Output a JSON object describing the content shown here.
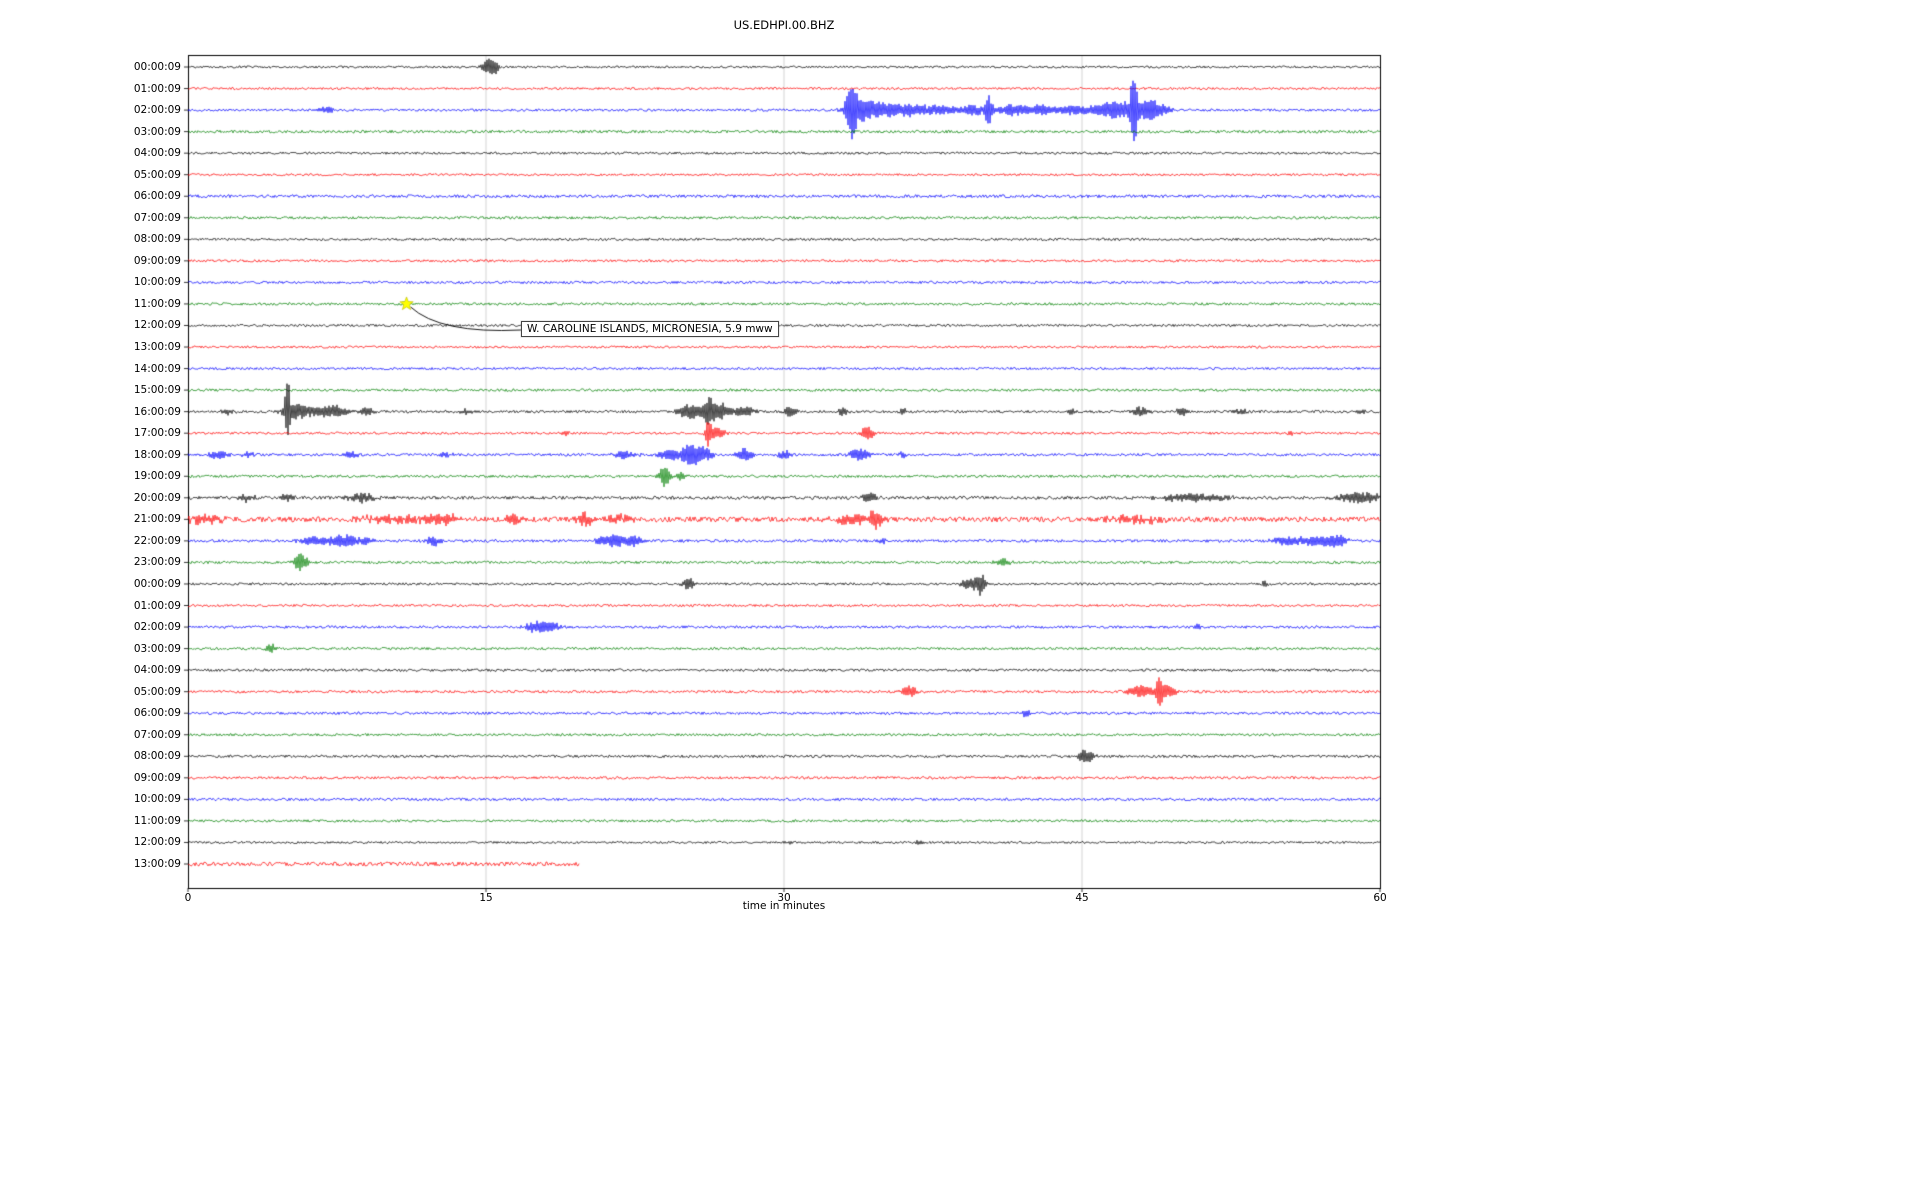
{
  "chart_data": {
    "type": "line",
    "title": "US.EDHPI.00.BHZ",
    "xlabel": "time in minutes",
    "x_range": [
      0,
      60
    ],
    "x_ticks": [
      0,
      15,
      30,
      45,
      60
    ],
    "x_tick_labels": [
      "0",
      "15",
      "30",
      "45",
      "60"
    ],
    "grid_x": [
      15,
      30,
      45
    ],
    "grid_color": "#c8c8c8",
    "trace_colors": {
      "black": "#000000",
      "red": "#ff0000",
      "blue": "#0000ff",
      "green": "#008000"
    },
    "annotation": {
      "text": "W. CAROLINE ISLANDS, MICRONESIA, 5.9 mww",
      "row_index": 11,
      "x_min": 11,
      "marker": "star",
      "marker_color": "#ffff00"
    },
    "rows": [
      {
        "label": "00:00:09",
        "color": "black",
        "noise": 1.1,
        "events": [
          [
            15.1,
            0.3,
            8
          ],
          [
            15.5,
            0.2,
            5
          ]
        ]
      },
      {
        "label": "01:00:09",
        "color": "red",
        "noise": 1.1,
        "events": []
      },
      {
        "label": "02:00:09",
        "color": "blue",
        "noise": 1.2,
        "events": [
          [
            6.9,
            0.5,
            3
          ],
          [
            33.4,
            0.25,
            26
          ],
          [
            33.8,
            0.8,
            8
          ],
          [
            35,
            1.2,
            7
          ],
          [
            36.5,
            0.8,
            5
          ],
          [
            38,
            0.8,
            5
          ],
          [
            39.5,
            0.5,
            6
          ],
          [
            40.3,
            0.2,
            14
          ],
          [
            41.5,
            0.8,
            6
          ],
          [
            43,
            0.8,
            5
          ],
          [
            44.5,
            0.6,
            5
          ],
          [
            46,
            0.8,
            6
          ],
          [
            47,
            0.8,
            8
          ],
          [
            47.6,
            0.15,
            45
          ],
          [
            48.3,
            0.5,
            10
          ],
          [
            49,
            0.5,
            5
          ]
        ]
      },
      {
        "label": "03:00:09",
        "color": "green",
        "noise": 1.4,
        "events": []
      },
      {
        "label": "04:00:09",
        "color": "black",
        "noise": 1.2,
        "events": []
      },
      {
        "label": "05:00:09",
        "color": "red",
        "noise": 1.1,
        "events": []
      },
      {
        "label": "06:00:09",
        "color": "blue",
        "noise": 1.5,
        "events": []
      },
      {
        "label": "07:00:09",
        "color": "green",
        "noise": 1.3,
        "events": []
      },
      {
        "label": "08:00:09",
        "color": "black",
        "noise": 1.2,
        "events": []
      },
      {
        "label": "09:00:09",
        "color": "red",
        "noise": 1.2,
        "events": []
      },
      {
        "label": "10:00:09",
        "color": "blue",
        "noise": 1.3,
        "events": []
      },
      {
        "label": "11:00:09",
        "color": "green",
        "noise": 1.3,
        "events": [
          [
            11,
            0.2,
            3
          ]
        ]
      },
      {
        "label": "12:00:09",
        "color": "black",
        "noise": 1.2,
        "events": []
      },
      {
        "label": "13:00:09",
        "color": "red",
        "noise": 1.1,
        "events": []
      },
      {
        "label": "14:00:09",
        "color": "blue",
        "noise": 1.2,
        "events": []
      },
      {
        "label": "15:00:09",
        "color": "green",
        "noise": 1.3,
        "events": []
      },
      {
        "label": "16:00:09",
        "color": "black",
        "noise": 1.3,
        "events": [
          [
            2,
            0.3,
            3
          ],
          [
            5,
            0.12,
            36
          ],
          [
            5.4,
            0.6,
            9
          ],
          [
            6.5,
            0.5,
            5
          ],
          [
            7.5,
            0.6,
            6
          ],
          [
            9,
            0.4,
            4
          ],
          [
            14,
            0.3,
            3
          ],
          [
            25.3,
            0.6,
            8
          ],
          [
            26.2,
            0.3,
            13
          ],
          [
            26.8,
            0.4,
            9
          ],
          [
            28,
            0.5,
            6
          ],
          [
            30.3,
            0.3,
            6
          ],
          [
            33,
            0.3,
            4
          ],
          [
            36,
            0.2,
            3
          ],
          [
            44.5,
            0.2,
            3
          ],
          [
            48,
            0.4,
            5
          ],
          [
            50,
            0.3,
            4
          ],
          [
            53,
            0.3,
            3
          ],
          [
            59,
            0.3,
            3
          ]
        ]
      },
      {
        "label": "17:00:09",
        "color": "red",
        "noise": 1.2,
        "events": [
          [
            19,
            0.2,
            3
          ],
          [
            26.2,
            0.15,
            12
          ],
          [
            26.6,
            0.4,
            7
          ],
          [
            34.2,
            0.3,
            8
          ],
          [
            55.5,
            0.15,
            3
          ]
        ]
      },
      {
        "label": "18:00:09",
        "color": "blue",
        "noise": 1.3,
        "events": [
          [
            1.5,
            0.5,
            4
          ],
          [
            3,
            0.3,
            3
          ],
          [
            8.2,
            0.4,
            4
          ],
          [
            13,
            0.3,
            3
          ],
          [
            22,
            0.6,
            4
          ],
          [
            24.3,
            0.6,
            6
          ],
          [
            25.3,
            0.4,
            11
          ],
          [
            26,
            0.4,
            7
          ],
          [
            28,
            0.5,
            6
          ],
          [
            30,
            0.3,
            5
          ],
          [
            33.8,
            0.5,
            6
          ],
          [
            36,
            0.2,
            3
          ]
        ]
      },
      {
        "label": "19:00:09",
        "color": "green",
        "noise": 1.3,
        "events": [
          [
            24,
            0.3,
            10
          ],
          [
            24.8,
            0.3,
            4
          ]
        ]
      },
      {
        "label": "20:00:09",
        "color": "black",
        "noise": 1.6,
        "events": [
          [
            3,
            0.4,
            4
          ],
          [
            5,
            0.3,
            4
          ],
          [
            8.7,
            0.7,
            5
          ],
          [
            34.3,
            0.4,
            5
          ],
          [
            50.5,
            1.8,
            4
          ],
          [
            59,
            1.2,
            5
          ]
        ]
      },
      {
        "label": "21:00:09",
        "color": "red",
        "noise": 2.6,
        "events": [
          [
            0.8,
            1.2,
            4
          ],
          [
            10.5,
            2,
            4
          ],
          [
            13,
            0.8,
            4
          ],
          [
            16.3,
            0.3,
            6
          ],
          [
            20,
            0.4,
            7
          ],
          [
            21.8,
            1,
            4
          ],
          [
            33.5,
            1,
            5
          ],
          [
            34.6,
            0.3,
            8
          ],
          [
            47.8,
            1.5,
            4
          ]
        ]
      },
      {
        "label": "22:00:09",
        "color": "blue",
        "noise": 1.4,
        "events": [
          [
            6.6,
            1,
            5
          ],
          [
            8,
            0.6,
            6
          ],
          [
            9,
            0.4,
            4
          ],
          [
            12.4,
            0.4,
            5
          ],
          [
            21.4,
            0.8,
            7
          ],
          [
            22.5,
            0.4,
            5
          ],
          [
            35,
            0.2,
            3
          ],
          [
            55.4,
            0.8,
            5
          ],
          [
            57,
            0.8,
            6
          ],
          [
            58,
            0.4,
            5
          ]
        ]
      },
      {
        "label": "23:00:09",
        "color": "green",
        "noise": 1.3,
        "events": [
          [
            5.6,
            0.25,
            9
          ],
          [
            6,
            0.2,
            5
          ],
          [
            41,
            0.4,
            4
          ]
        ]
      },
      {
        "label": "00:00:09",
        "color": "black",
        "noise": 1.2,
        "events": [
          [
            25.2,
            0.3,
            6
          ],
          [
            39.3,
            0.4,
            6
          ],
          [
            39.9,
            0.25,
            11
          ],
          [
            54.2,
            0.15,
            3
          ]
        ]
      },
      {
        "label": "01:00:09",
        "color": "red",
        "noise": 1.2,
        "events": []
      },
      {
        "label": "02:00:09",
        "color": "blue",
        "noise": 1.3,
        "events": [
          [
            17.6,
            0.6,
            6
          ],
          [
            18.4,
            0.4,
            4
          ],
          [
            50.8,
            0.15,
            3
          ]
        ]
      },
      {
        "label": "03:00:09",
        "color": "green",
        "noise": 1.2,
        "events": [
          [
            4.2,
            0.25,
            5
          ]
        ]
      },
      {
        "label": "04:00:09",
        "color": "black",
        "noise": 1.3,
        "events": []
      },
      {
        "label": "05:00:09",
        "color": "red",
        "noise": 1.3,
        "events": [
          [
            36.3,
            0.4,
            6
          ],
          [
            47.9,
            0.6,
            7
          ],
          [
            48.9,
            0.2,
            14
          ],
          [
            49.4,
            0.4,
            7
          ]
        ]
      },
      {
        "label": "06:00:09",
        "color": "blue",
        "noise": 1.3,
        "events": [
          [
            42.2,
            0.25,
            4
          ]
        ]
      },
      {
        "label": "07:00:09",
        "color": "green",
        "noise": 1.2,
        "events": []
      },
      {
        "label": "08:00:09",
        "color": "black",
        "noise": 1.3,
        "events": [
          [
            45.2,
            0.4,
            7
          ]
        ]
      },
      {
        "label": "09:00:09",
        "color": "red",
        "noise": 1.3,
        "events": []
      },
      {
        "label": "10:00:09",
        "color": "blue",
        "noise": 1.3,
        "events": []
      },
      {
        "label": "11:00:09",
        "color": "green",
        "noise": 1.2,
        "events": []
      },
      {
        "label": "12:00:09",
        "color": "black",
        "noise": 1.1,
        "events": [
          [
            30.3,
            0.2,
            2.5
          ],
          [
            36.8,
            0.25,
            3
          ]
        ]
      },
      {
        "label": "13:00:09",
        "color": "red",
        "noise": 2.0,
        "events": [],
        "end_min": 19.7
      }
    ]
  }
}
